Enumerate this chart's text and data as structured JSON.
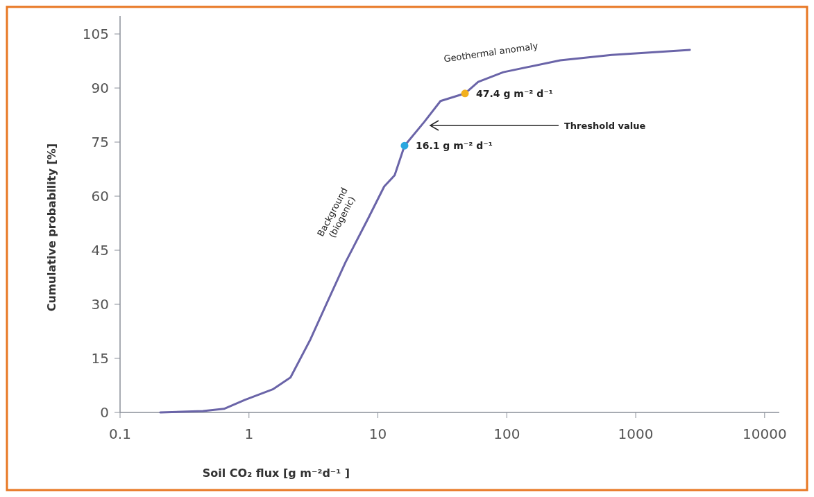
{
  "chart_data": {
    "type": "line",
    "xlabel": "Soil CO₂ flux [g m⁻²d⁻¹ ]",
    "ylabel": "Cumulative probability [%]",
    "log": "x",
    "xlim": [
      0.1,
      13000
    ],
    "ylim": [
      0,
      110
    ],
    "xticks": [
      0.1,
      1,
      10,
      100,
      1000,
      10000
    ],
    "yticks": [
      0,
      15,
      30,
      45,
      60,
      75,
      90,
      105
    ],
    "series": [
      {
        "color": "#6a64a8",
        "x": [
          0.205,
          0.44,
          0.64,
          0.93,
          1.53,
          2.1,
          3.0,
          4.05,
          5.6,
          8.4,
          11.2,
          13.5,
          16.1,
          22.9,
          30.6,
          47.4,
          60,
          94,
          260,
          650,
          2630
        ],
        "values": [
          0,
          0.4,
          1,
          3.5,
          6.4,
          9.7,
          20.3,
          30.6,
          41.6,
          53.8,
          62.7,
          65.8,
          74,
          80.6,
          86.4,
          88.5,
          91.7,
          94.4,
          97.7,
          99.2,
          100.6
        ]
      },
      {
        "type": "scatter",
        "x": [
          16.1,
          47.4
        ],
        "values": [
          74,
          88.5
        ],
        "colors": [
          "#2aa7e0",
          "#f2b01e"
        ],
        "marker": "circle"
      }
    ],
    "annotations": [
      {
        "text": "16.1 g m⁻² d⁻¹",
        "x": 16.1,
        "y": 74
      },
      {
        "text": "47.4 g m⁻² d⁻¹",
        "x": 47.4,
        "y": 88.5
      },
      "Threshold value",
      "Geothermal anomaly",
      "Background (biogenic)"
    ]
  }
}
